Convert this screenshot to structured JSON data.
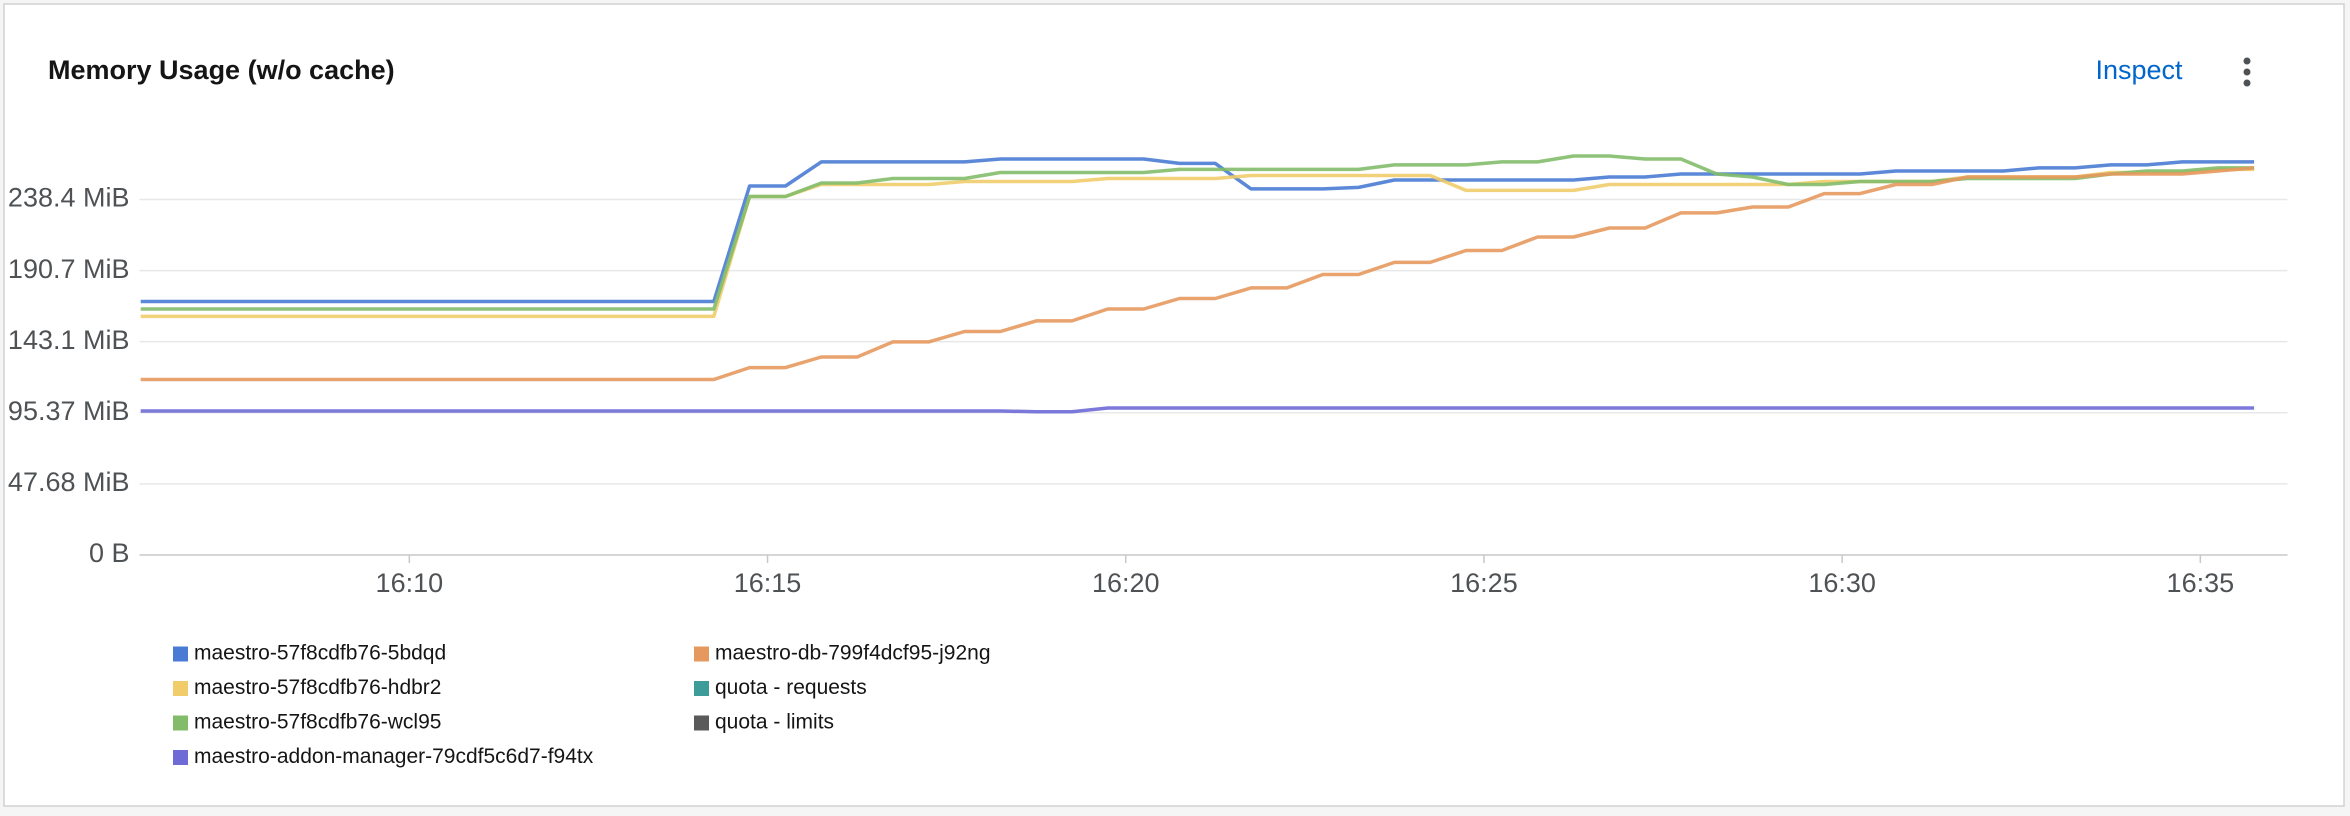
{
  "chart_data": {
    "type": "line",
    "title": "Memory Usage (w/o cache)",
    "action": "Inspect",
    "x": [
      "16:06:15",
      "16:06:45",
      "16:07:15",
      "16:07:45",
      "16:08:15",
      "16:08:45",
      "16:09:15",
      "16:09:45",
      "16:10:15",
      "16:10:45",
      "16:11:15",
      "16:11:45",
      "16:12:15",
      "16:12:45",
      "16:13:15",
      "16:13:45",
      "16:14:15",
      "16:14:45",
      "16:15:15",
      "16:15:45",
      "16:16:15",
      "16:16:45",
      "16:17:15",
      "16:17:45",
      "16:18:15",
      "16:18:45",
      "16:19:15",
      "16:19:45",
      "16:20:15",
      "16:20:45",
      "16:21:15",
      "16:21:45",
      "16:22:15",
      "16:22:45",
      "16:23:15",
      "16:23:45",
      "16:24:15",
      "16:24:45",
      "16:25:15",
      "16:25:45",
      "16:26:15",
      "16:26:45",
      "16:27:15",
      "16:27:45",
      "16:28:15",
      "16:28:45",
      "16:29:15",
      "16:29:45",
      "16:30:15",
      "16:30:45",
      "16:31:15",
      "16:31:45",
      "16:32:15",
      "16:32:45",
      "16:33:15",
      "16:33:45",
      "16:34:15",
      "16:34:45",
      "16:35:15",
      "16:35:45"
    ],
    "series": [
      {
        "name": "maestro-57f8cdfb76-5bdqd",
        "color": "#4a7bd4",
        "values": [
          170,
          170,
          170,
          170,
          170,
          170,
          170,
          170,
          170,
          170,
          170,
          170,
          170,
          170,
          170,
          170,
          170,
          247.5,
          247.5,
          263.6,
          263.6,
          263.6,
          263.6,
          263.6,
          265.6,
          265.6,
          265.6,
          265.6,
          265.6,
          262.6,
          262.6,
          245.5,
          245.5,
          245.5,
          246.5,
          251.5,
          251.5,
          251.5,
          251.5,
          251.5,
          251.5,
          253.5,
          253.5,
          255.5,
          255.5,
          255.5,
          255.5,
          255.5,
          255.5,
          257.5,
          257.5,
          257.5,
          257.5,
          259.6,
          259.6,
          261.6,
          261.6,
          263.6,
          263.6,
          263.6
        ]
      },
      {
        "name": "maestro-57f8cdfb76-hdbr2",
        "color": "#f0cc6a",
        "values": [
          160,
          160,
          160,
          160,
          160,
          160,
          160,
          160,
          160,
          160,
          160,
          160,
          160,
          160,
          160,
          160,
          160,
          240.4,
          240.4,
          248.5,
          248.5,
          248.5,
          248.5,
          250.5,
          250.5,
          250.5,
          250.5,
          252.5,
          252.5,
          252.5,
          252.5,
          254.5,
          254.5,
          254.5,
          254.5,
          254.5,
          254.5,
          244.5,
          244.5,
          244.5,
          244.5,
          248.5,
          248.5,
          248.5,
          248.5,
          248.5,
          248.5,
          250.5,
          250.5,
          250.5,
          250.5,
          253.5,
          253.5,
          253.5,
          253.5,
          256.5,
          256.5,
          256.5,
          258.6,
          258.6
        ]
      },
      {
        "name": "maestro-57f8cdfb76-wcl95",
        "color": "#82bc6a",
        "values": [
          165,
          165,
          165,
          165,
          165,
          165,
          165,
          165,
          165,
          165,
          165,
          165,
          165,
          165,
          165,
          165,
          165,
          240.4,
          240.4,
          249.5,
          249.5,
          252.5,
          252.5,
          252.5,
          256.5,
          256.5,
          256.5,
          256.5,
          256.5,
          258.6,
          258.6,
          258.6,
          258.6,
          258.6,
          258.6,
          261.6,
          261.6,
          261.6,
          263.6,
          263.6,
          267.6,
          267.6,
          265.6,
          265.6,
          255.5,
          253.5,
          248.5,
          248.5,
          250.5,
          250.5,
          250.5,
          252.5,
          252.5,
          252.5,
          252.5,
          255.5,
          257.5,
          257.5,
          259.6,
          259.6
        ]
      },
      {
        "name": "maestro-addon-manager-79cdf5c6d7-f94tx",
        "color": "#6e6ad6",
        "values": [
          96.6,
          96.6,
          96.6,
          96.6,
          96.6,
          96.6,
          96.6,
          96.6,
          96.6,
          96.6,
          96.6,
          96.6,
          96.6,
          96.6,
          96.6,
          96.6,
          96.6,
          96.6,
          96.6,
          96.6,
          96.6,
          96.6,
          96.6,
          96.6,
          96.6,
          96.1,
          96.1,
          98.6,
          98.6,
          98.6,
          98.6,
          98.6,
          98.6,
          98.6,
          98.6,
          98.6,
          98.6,
          98.6,
          98.6,
          98.6,
          98.6,
          98.6,
          98.6,
          98.6,
          98.6,
          98.6,
          98.6,
          98.6,
          98.6,
          98.6,
          98.6,
          98.6,
          98.6,
          98.6,
          98.6,
          98.6,
          98.6,
          98.6,
          98.6,
          98.6
        ]
      },
      {
        "name": "maestro-db-799f4dcf95-j92ng",
        "color": "#e5995e",
        "values": [
          117.7,
          117.7,
          117.7,
          117.7,
          117.7,
          117.7,
          117.7,
          117.7,
          117.7,
          117.7,
          117.7,
          117.7,
          117.7,
          117.7,
          117.7,
          117.7,
          117.7,
          125.7,
          125.7,
          132.8,
          132.8,
          142.9,
          142.9,
          149.9,
          149.9,
          157,
          157,
          165,
          165,
          172,
          172,
          179.1,
          179.1,
          188.1,
          188.1,
          196.2,
          196.2,
          204.2,
          204.2,
          213.3,
          213.3,
          219.3,
          219.3,
          229.4,
          229.4,
          233.4,
          233.4,
          242.4,
          242.4,
          248.5,
          248.5,
          253.5,
          253.5,
          253.5,
          253.5,
          255.5,
          255.5,
          255.5,
          257.5,
          259.6
        ]
      },
      {
        "name": "quota - requests",
        "color": "#3c9c9a"
      },
      {
        "name": "quota - limits",
        "color": "#5a5a5a"
      }
    ],
    "xlim": [
      "16:06:14",
      "16:36:13"
    ],
    "xticks": [
      "16:10",
      "16:15",
      "16:20",
      "16:25",
      "16:30",
      "16:35"
    ],
    "ylim": [
      0,
      286.1
    ],
    "yticks": [
      {
        "value": 0,
        "label": "0 B"
      },
      {
        "value": 47.68,
        "label": "47.68 MiB"
      },
      {
        "value": 95.37,
        "label": "95.37 MiB"
      },
      {
        "value": 143.1,
        "label": "143.1 MiB"
      },
      {
        "value": 190.7,
        "label": "190.7 MiB"
      },
      {
        "value": 238.4,
        "label": "238.4 MiB"
      }
    ],
    "grid": true
  }
}
